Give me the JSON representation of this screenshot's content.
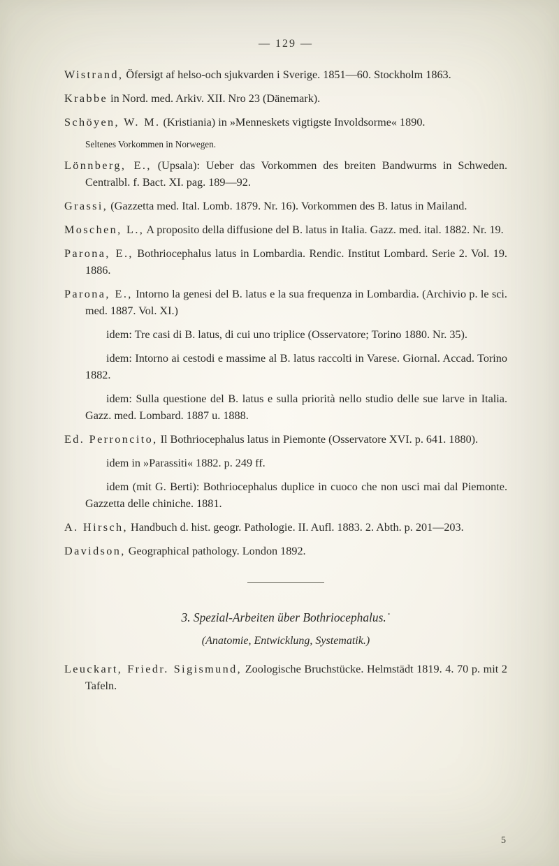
{
  "page_number_display": "—   129   —",
  "entries": [
    {
      "html": "<span class='sp'>Wistrand,</span> Öfersigt af helso-och sjukvarden i Sverige. 1851—60. Stockholm 1863."
    },
    {
      "html": "<span class='sp'>Krabbe</span> in Nord. med. Arkiv. XII. Nro 23 (Dänemark)."
    },
    {
      "html": "<span class='sp'>Schöyen, W. M.</span> (Kristiania) in »Menneskets vigtigste Involdsorme« 1890."
    },
    {
      "small": true,
      "html": "Seltenes Vorkommen in Norwegen."
    },
    {
      "html": "<span class='sp'>Lönnberg, E.,</span> (Upsala): Ueber das Vorkommen des breiten Band­wurms in Schweden. Centralbl. f. Bact. XI. pag. 189—92."
    },
    {
      "html": "<span class='sp'>Grassi,</span> (Gazzetta med. Ital. Lomb. 1879. Nr. 16). Vorkommen des B. latus in Mailand."
    },
    {
      "html": "<span class='sp'>Moschen, L.,</span> A proposito della diffusione del B. latus in Italia. Gazz. med. ital. 1882. Nr. 19."
    },
    {
      "html": "<span class='sp'>Parona, E.,</span> Bothriocephalus latus in Lombardia. Rendic. Institut Lombard. Serie 2. Vol. 19. 1886."
    },
    {
      "html": "<span class='sp'>Parona, E.,</span> Intorno la genesi del B. latus e la sua frequenza in Lombardia. (Archivio p. le sci. med. 1887. Vol. XI.)"
    },
    {
      "sub": true,
      "html": "idem: Tre casi di B. latus, di cui uno triplice (Osservatore; Torino 1880. Nr. 35)."
    },
    {
      "sub": true,
      "html": "idem: Intorno ai cestodi e massime al B. latus raccolti in Varese. Giornal. Accad. Torino 1882."
    },
    {
      "sub": true,
      "html": "idem: Sulla questione del B. latus e sulla priorità nello studio delle sue larve in Italia. Gazz. med. Lombard. 1887 u. 1888."
    },
    {
      "html": "<span class='sp'>Ed. Perroncito,</span> Il Bothriocephalus latus in Piemonte (Osservatore XVI. p. 641. 1880)."
    },
    {
      "sub": true,
      "html": "idem in »Parassiti« 1882. p. 249 ff."
    },
    {
      "sub": true,
      "html": "idem (mit G. Berti): Bothriocephalus duplice in cuoco che non usci mai dal Piemonte. Gazzetta delle chiniche. 1881."
    },
    {
      "html": "<span class='sp'>A. Hirsch,</span> Handbuch d. hist. geogr. Pathologie. II. Aufl. 1883. 2. Abth. p. 201—203."
    },
    {
      "html": "<span class='sp'>Davidson,</span> Geographical pathology. London 1892."
    }
  ],
  "section_title": "3. Spezial-Arbeiten über Bothriocephalus.˙",
  "section_sub": "(Anatomie, Entwicklung, Systematik.)",
  "last_entry": "<span class='sp'>Leuckart, Friedr. Sigismund,</span> Zoologische Bruchstücke. Helm­städt 1819. 4. 70 p. mit 2 Tafeln.",
  "foot_number": "5"
}
